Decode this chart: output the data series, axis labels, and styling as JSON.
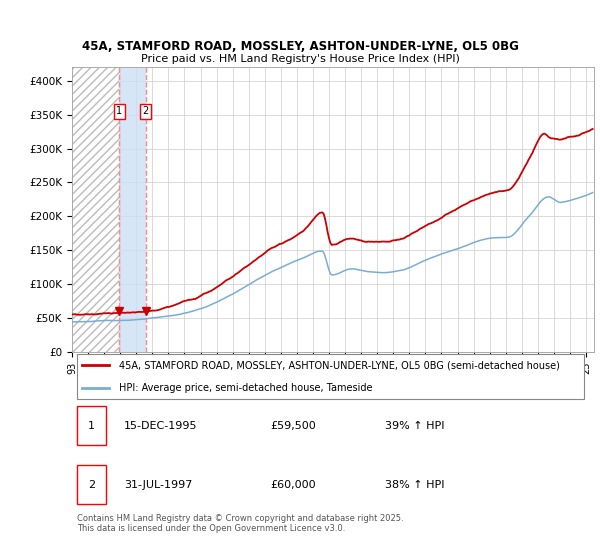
{
  "title_line1": "45A, STAMFORD ROAD, MOSSLEY, ASHTON-UNDER-LYNE, OL5 0BG",
  "title_line2": "Price paid vs. HM Land Registry's House Price Index (HPI)",
  "legend_line1": "45A, STAMFORD ROAD, MOSSLEY, ASHTON-UNDER-LYNE, OL5 0BG (semi-detached house)",
  "legend_line2": "HPI: Average price, semi-detached house, Tameside",
  "purchase1_date": "15-DEC-1995",
  "purchase1_price": 59500,
  "purchase1_hpi": "39% ↑ HPI",
  "purchase2_date": "31-JUL-1997",
  "purchase2_price": 60000,
  "purchase2_hpi": "38% ↑ HPI",
  "footer": "Contains HM Land Registry data © Crown copyright and database right 2025.\nThis data is licensed under the Open Government Licence v3.0.",
  "red_line_color": "#cc0000",
  "blue_line_color": "#7aadd4",
  "dashed_line_color": "#ff8888",
  "highlight_fill": "#cce0f5",
  "background_color": "#ffffff",
  "grid_color": "#cccccc",
  "hatch_color": "#bbbbbb",
  "ylim": [
    0,
    420000
  ],
  "yticks": [
    0,
    50000,
    100000,
    150000,
    200000,
    250000,
    300000,
    350000,
    400000
  ],
  "ylabel_format": [
    "£0",
    "£50K",
    "£100K",
    "£150K",
    "£200K",
    "£250K",
    "£300K",
    "£350K",
    "£400K"
  ]
}
